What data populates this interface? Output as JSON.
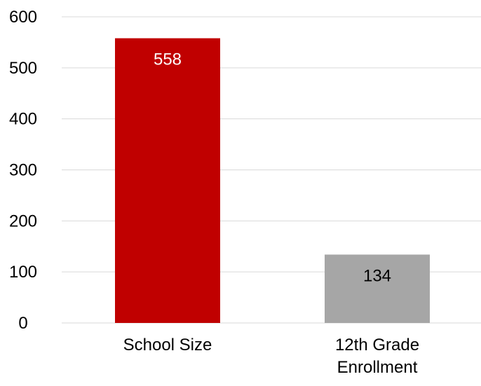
{
  "chart_data": {
    "type": "bar",
    "title": "",
    "xlabel": "",
    "ylabel": "",
    "categories": [
      [
        "School Size"
      ],
      [
        "12th Grade",
        "Enrollment"
      ]
    ],
    "values": [
      558,
      134
    ],
    "data_labels": [
      "558",
      "134"
    ],
    "bar_colors": [
      "#c00000",
      "#a6a6a6"
    ],
    "data_label_colors": [
      "#ffffff",
      "#000000"
    ],
    "ylim": [
      0,
      600
    ],
    "yticks": [
      0,
      100,
      200,
      300,
      400,
      500,
      600
    ],
    "ytick_labels": [
      "0",
      "100",
      "200",
      "300",
      "400",
      "500",
      "600"
    ],
    "grid": true,
    "grid_color": "#d9d9d9",
    "legend": "none"
  }
}
